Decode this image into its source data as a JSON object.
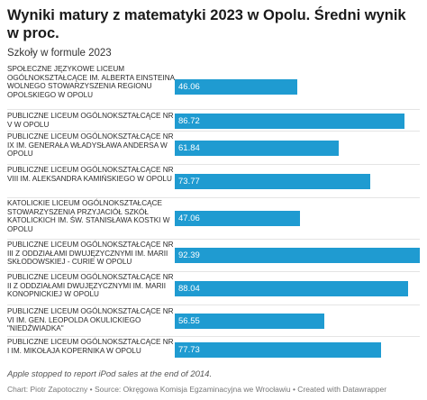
{
  "title": "Wyniki matury z matematyki 2023 w Opolu. Średni wynik w proc.",
  "subtitle": "Szkoły w formule 2023",
  "note": "Apple stopped to report iPod sales at the end of 2014.",
  "footer": "Chart: Piotr Zapotoczny • Source: Okręgowa Komisja Egzaminacyjna we Wrocławiu • Created with Datawrapper",
  "colors": {
    "bar": "#1f9bd1",
    "value_text": "#ffffff"
  },
  "chart_data": {
    "type": "bar",
    "orientation": "horizontal",
    "xlim": [
      0,
      92.39
    ],
    "grid": false,
    "categories": [
      "SPOŁECZNE JĘZYKOWE LICEUM OGÓLNOKSZTAŁCĄCE IM. ALBERTA EINSTEINA WOLNEGO STOWARZYSZENIA REGIONU OPOLSKIEGO W OPOLU",
      "PUBLICZNE LICEUM OGÓLNOKSZTAŁCĄCE NR V W OPOLU",
      "PUBLICZNE LICEUM OGÓLNOKSZTAŁCĄCE NR IX IM. GENERAŁA WŁADYSŁAWA ANDERSA W OPOLU",
      "PUBLICZNE LICEUM OGÓLNOKSZTAŁCĄCE NR VIII IM. ALEKSANDRA KAMIŃSKIEGO W OPOLU",
      "KATOLICKIE LICEUM OGÓLNOKSZTAŁCĄCE STOWARZYSZENIA PRZYJACIÓŁ SZKÓŁ KATOLICKICH IM. ŚW. STANISŁAWA KOSTKI W OPOLU",
      "PUBLICZNE LICEUM OGÓLNOKSZTAŁCĄCE NR III Z ODDZIAŁAMI DWUJĘZYCZNYMI IM. MARII SKŁODOWSKIEJ - CURIE W OPOLU",
      "PUBLICZNE LICEUM OGÓLNOKSZTAŁCĄCE NR II Z ODDZIAŁAMI DWUJĘZYCZNYMI IM. MARII KONOPNICKIEJ W OPOLU",
      "PUBLICZNE LICEUM OGÓLNOKSZTAŁCĄCE NR VI IM. GEN. LEOPOLDA OKULICKIEGO \"NIEDŹWIADKA\"",
      "PUBLICZNE LICEUM OGÓLNOKSZTAŁCĄCE NR I IM. MIKOŁAJA KOPERNIKA W OPOLU"
    ],
    "values": [
      46.06,
      86.72,
      61.84,
      73.77,
      47.06,
      92.39,
      88.04,
      56.55,
      77.73
    ],
    "value_labels": [
      "46.06",
      "86.72",
      "61.84",
      "73.77",
      "47.06",
      "92.39",
      "88.04",
      "56.55",
      "77.73"
    ]
  }
}
